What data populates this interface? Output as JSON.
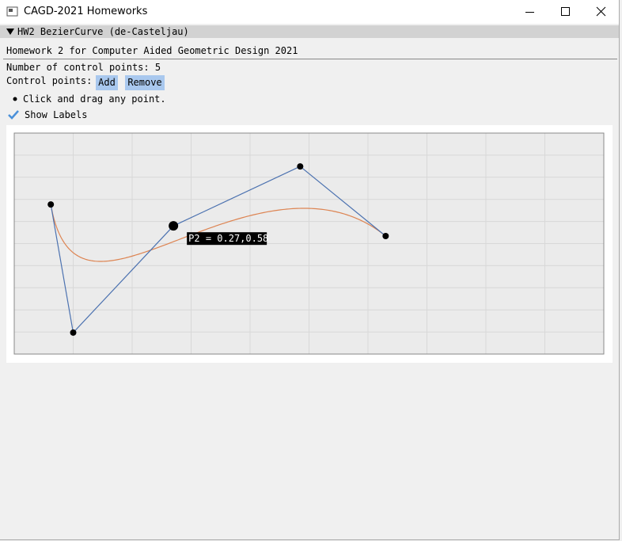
{
  "window": {
    "title": "CAGD-2021 Homeworks"
  },
  "panel": {
    "header": "HW2 BezierCurve (de-Casteljau)",
    "description": "Homework 2 for Computer Aided Geometric Design 2021",
    "count_text": "Number of control points: 5",
    "control_points_label": "Control points:",
    "buttons": [
      "Add",
      "Remove"
    ],
    "hint": "Click and drag any point.",
    "checkbox": {
      "label": "Show Labels",
      "checked": true
    }
  },
  "plot": {
    "xlim": [
      0,
      1
    ],
    "ylim": [
      0,
      1
    ],
    "xticks": [
      0,
      0.1,
      0.2,
      0.3,
      0.4,
      0.5,
      0.6,
      0.7,
      0.8,
      0.9,
      1
    ],
    "yticks": [
      0,
      0.1,
      0.2,
      0.3,
      0.4,
      0.5,
      0.6,
      0.7,
      0.8,
      0.9,
      1
    ],
    "grid": true,
    "points": [
      {
        "x": 0.062,
        "y": 0.677
      },
      {
        "x": 0.1,
        "y": 0.097
      },
      {
        "x": 0.27,
        "y": 0.58
      },
      {
        "x": 0.485,
        "y": 0.849
      },
      {
        "x": 0.63,
        "y": 0.534
      }
    ],
    "active_index": 2,
    "active_label": "P2 = 0.27,0.58",
    "polygon_color": "#4c72b0",
    "curve_color": "#dd8452"
  }
}
